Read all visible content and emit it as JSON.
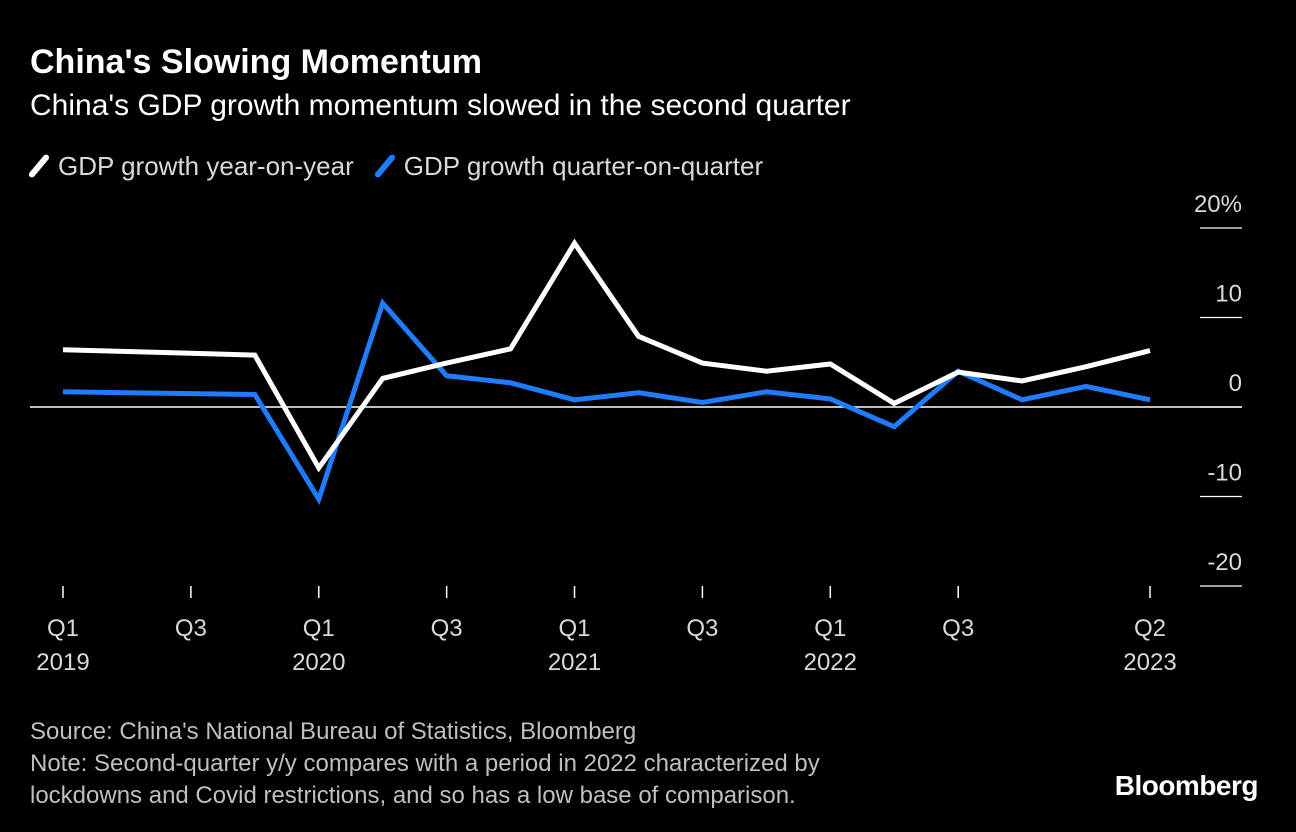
{
  "header": {
    "title": "China's Slowing Momentum",
    "subtitle": "China's GDP growth momentum slowed in the second quarter"
  },
  "footer": {
    "source": "Source: China's National Bureau of Statistics, Bloomberg",
    "note_line1": "Note: Second-quarter y/y compares with a period in 2022 characterized by",
    "note_line2": "lockdowns and Covid restrictions, and so has a low base of comparison.",
    "brand": "Bloomberg"
  },
  "colors": {
    "background": "#000000",
    "series_yoy": "#ffffff",
    "series_qoq": "#1f7cff",
    "text": "#d9d9d9"
  },
  "chart_data": {
    "type": "line",
    "x": [
      "2019-Q1",
      "2019-Q2",
      "2019-Q3",
      "2019-Q4",
      "2020-Q1",
      "2020-Q2",
      "2020-Q3",
      "2020-Q4",
      "2021-Q1",
      "2021-Q2",
      "2021-Q3",
      "2021-Q4",
      "2022-Q1",
      "2022-Q2",
      "2022-Q3",
      "2022-Q4",
      "2023-Q1",
      "2023-Q2"
    ],
    "series": [
      {
        "name": "GDP growth year-on-year",
        "color": "#ffffff",
        "values": [
          6.4,
          6.2,
          6.0,
          5.8,
          -6.8,
          3.2,
          4.9,
          6.5,
          18.3,
          7.9,
          4.9,
          4.0,
          4.8,
          0.4,
          3.9,
          2.9,
          4.5,
          6.3
        ]
      },
      {
        "name": "GDP growth quarter-on-quarter",
        "color": "#1f7cff",
        "values": [
          1.7,
          1.6,
          1.5,
          1.4,
          -10.3,
          11.6,
          3.5,
          2.7,
          0.8,
          1.6,
          0.5,
          1.7,
          0.9,
          -2.2,
          4.0,
          0.8,
          2.3,
          0.8
        ]
      }
    ],
    "x_ticks": [
      {
        "quarter": "Q1",
        "year": "2019"
      },
      {
        "quarter": "Q3",
        "year": ""
      },
      {
        "quarter": "Q1",
        "year": "2020"
      },
      {
        "quarter": "Q3",
        "year": ""
      },
      {
        "quarter": "Q1",
        "year": "2021"
      },
      {
        "quarter": "Q3",
        "year": ""
      },
      {
        "quarter": "Q1",
        "year": "2022"
      },
      {
        "quarter": "Q3",
        "year": ""
      },
      {
        "quarter": "Q2",
        "year": "2023"
      }
    ],
    "x_tick_positions": [
      "2019-Q1",
      "2019-Q3",
      "2020-Q1",
      "2020-Q3",
      "2021-Q1",
      "2021-Q3",
      "2022-Q1",
      "2022-Q3",
      "2023-Q2"
    ],
    "y_ticks": [
      20,
      10,
      0,
      -10,
      -20
    ],
    "y_tick_labels": [
      "20%",
      "10",
      "0",
      "-10",
      "-20"
    ],
    "ylim": [
      -20,
      20
    ],
    "grid": false,
    "zero_line": true,
    "legend_position": "top-left",
    "title": "China's Slowing Momentum",
    "subtitle": "China's GDP growth momentum slowed in the second quarter"
  }
}
